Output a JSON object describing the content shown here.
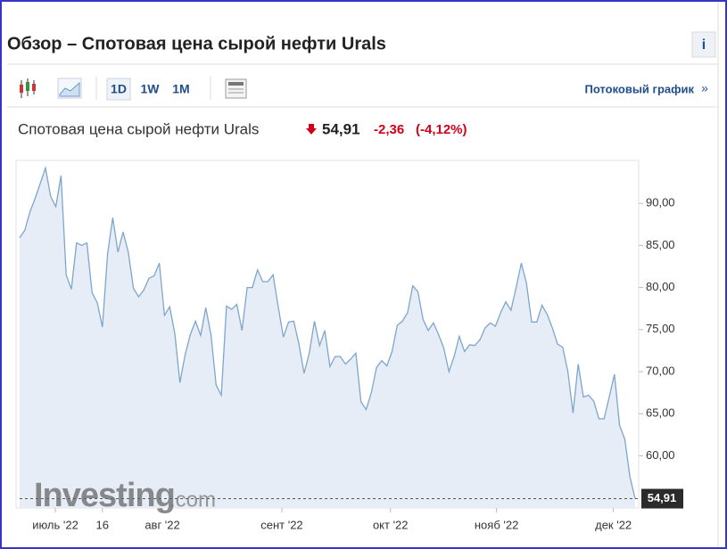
{
  "header": {
    "title": "Обзор – Спотовая цена сырой нефти Urals",
    "info": "i"
  },
  "toolbar": {
    "periods": [
      "1D",
      "1W",
      "1M"
    ],
    "stream_link": "Потоковый график",
    "stream_arrow": "»"
  },
  "quote": {
    "name": "Спотовая цена сырой нефти Urals",
    "price": "54,91",
    "change": "-2,36",
    "change_percent": "(-4,12%)"
  },
  "watermark": {
    "brand": "Investing",
    "domain": ".com"
  },
  "chart_data": {
    "type": "area",
    "color": "#7ea6cc",
    "fill": "#e6edf6",
    "values": [
      85.9,
      86.8,
      89.0,
      90.6,
      92.4,
      94.2,
      90.8,
      89.6,
      93.3,
      81.5,
      79.8,
      85.3,
      85.0,
      85.3,
      79.4,
      78.2,
      75.3,
      84.0,
      88.3,
      84.2,
      86.6,
      84.2,
      79.9,
      78.9,
      79.7,
      81.1,
      81.4,
      82.9,
      76.7,
      77.7,
      74.6,
      68.7,
      72.0,
      74.4,
      76.0,
      74.3,
      77.6,
      74.4,
      68.4,
      67.2,
      77.8,
      77.4,
      78.0,
      74.9,
      80.0,
      80.0,
      82.1,
      80.7,
      80.7,
      81.5,
      77.7,
      74.1,
      75.9,
      76.0,
      73.3,
      69.8,
      72.2,
      76.0,
      73.1,
      74.9,
      70.6,
      71.8,
      71.8,
      70.9,
      71.5,
      72.2,
      66.4,
      65.5,
      67.5,
      70.5,
      71.3,
      70.7,
      72.4,
      75.5,
      76.0,
      77.0,
      80.2,
      79.5,
      76.2,
      74.9,
      75.8,
      74.4,
      72.8,
      70.0,
      71.8,
      74.2,
      72.4,
      73.2,
      73.1,
      73.8,
      75.2,
      75.8,
      75.4,
      77.0,
      78.3,
      77.3,
      80.0,
      82.9,
      80.5,
      75.9,
      75.9,
      77.9,
      76.8,
      75.2,
      73.3,
      72.9,
      70.0,
      65.1,
      70.9,
      67.0,
      67.2,
      66.5,
      64.4,
      64.4,
      67.0,
      69.7,
      63.6,
      62.0,
      57.5,
      54.91
    ],
    "xlim": [
      0,
      119
    ],
    "xticks": [
      {
        "value": 6.9,
        "label": "июль '22"
      },
      {
        "value": 27.6,
        "label": "авг '22"
      },
      16,
      {
        "value": 50.7,
        "label": "сент '22"
      },
      {
        "value": 71.7,
        "label": "окт '22"
      },
      {
        "value": 92.2,
        "label": "нояб '22"
      },
      {
        "value": 114.8,
        "label": "дек '22"
      }
    ],
    "ylim": [
      53.8,
      95.1
    ],
    "yticks": [
      {
        "value": 60,
        "label": "60,00"
      },
      {
        "value": 65,
        "label": "65,00"
      },
      {
        "value": 70,
        "label": "70,00"
      },
      {
        "value": 75,
        "label": "75,00"
      },
      {
        "value": 80,
        "label": "80,00"
      },
      {
        "value": 85,
        "label": "85,00"
      },
      {
        "value": 90,
        "label": "90,00"
      }
    ],
    "grid": false
  }
}
